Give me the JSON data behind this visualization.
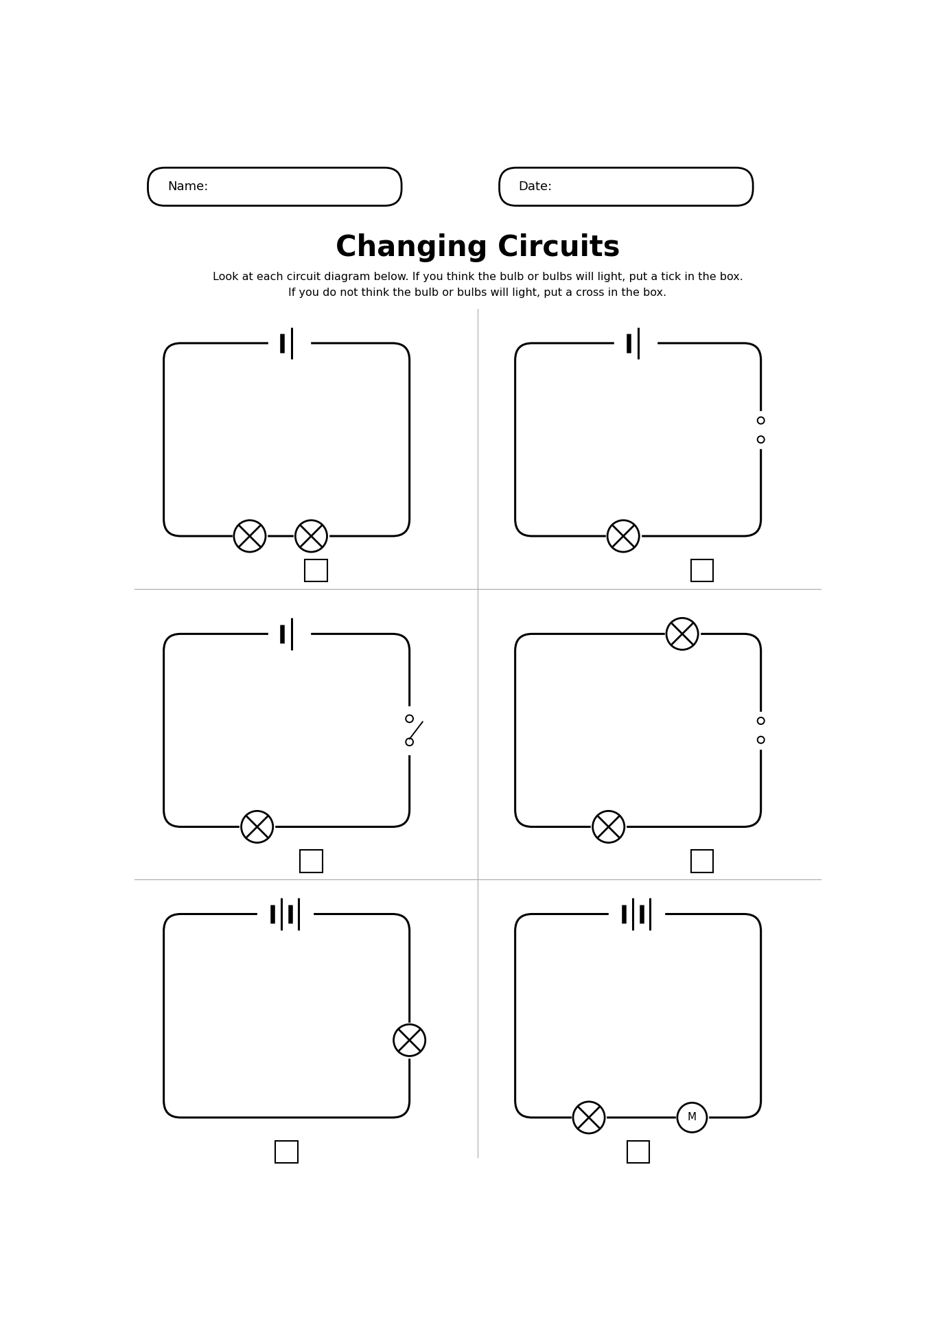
{
  "title": "Changing Circuits",
  "subtitle_line1": "Look at each circuit diagram below. If you think the bulb or bulbs will light, put a tick in the box.",
  "subtitle_line2": "If you do not think the bulb or bulbs will light, put a cross in the box.",
  "name_label": "Name:",
  "date_label": "Date:",
  "bg_color": "#ffffff",
  "line_color": "#000000",
  "grid_color": "#aaaaaa",
  "clw": 2.2,
  "lw": 1.8,
  "bulb_r": 0.3,
  "motor_r": 0.28
}
